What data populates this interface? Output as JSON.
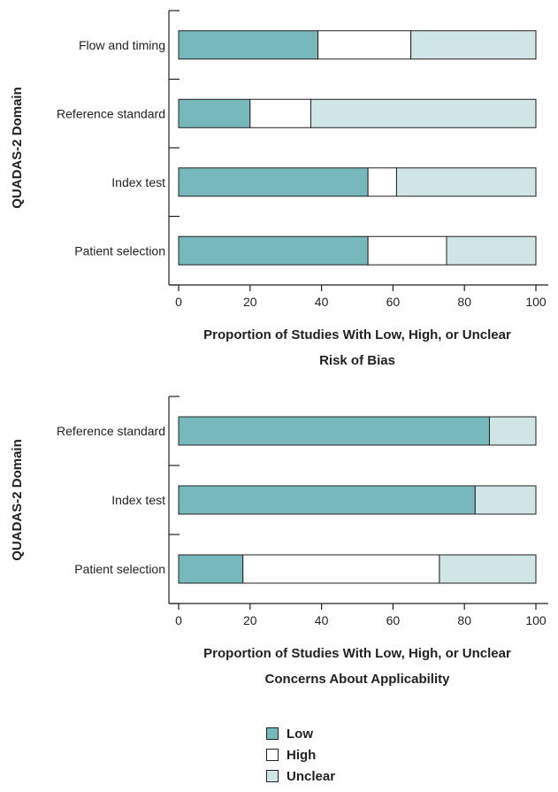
{
  "chart_data": [
    {
      "type": "bar",
      "stacked": true,
      "orientation": "horizontal",
      "title": "",
      "xlabel": "Proportion of Studies With Low, High, or Unclear Risk of Bias",
      "xlabel_lines": [
        "Proportion of Studies With Low, High, or Unclear",
        "Risk of Bias"
      ],
      "ylabel": "QUADAS-2 Domain",
      "xlim": [
        0,
        100
      ],
      "xticks": [
        "0",
        "20",
        "40",
        "60",
        "80",
        "100"
      ],
      "grid": false,
      "categories": [
        "Flow and timing",
        "Reference standard",
        "Index test",
        "Patient selection"
      ],
      "series": [
        {
          "name": "Low",
          "values": [
            39,
            20,
            53,
            53
          ]
        },
        {
          "name": "High",
          "values": [
            26,
            17,
            8,
            22
          ]
        },
        {
          "name": "Unclear",
          "values": [
            35,
            63,
            39,
            25
          ]
        }
      ]
    },
    {
      "type": "bar",
      "stacked": true,
      "orientation": "horizontal",
      "title": "",
      "xlabel": "Proportion of Studies With Low, High, or Unclear Concerns About Applicability",
      "xlabel_lines": [
        "Proportion of Studies With Low, High, or Unclear",
        "Concerns About Applicability"
      ],
      "ylabel": "QUADAS-2 Domain",
      "xlim": [
        0,
        100
      ],
      "xticks": [
        "0",
        "20",
        "40",
        "60",
        "80",
        "100"
      ],
      "grid": false,
      "categories": [
        "Reference standard",
        "Index test",
        "Patient selection"
      ],
      "series": [
        {
          "name": "Low",
          "values": [
            87,
            83,
            18
          ]
        },
        {
          "name": "High",
          "values": [
            0,
            0,
            55
          ]
        },
        {
          "name": "Unclear",
          "values": [
            13,
            17,
            27
          ]
        }
      ]
    }
  ],
  "legend": {
    "placement": "bottom-center",
    "items": [
      {
        "label": "Low",
        "color": "#76b8bc"
      },
      {
        "label": "High",
        "color": "#ffffff"
      },
      {
        "label": "Unclear",
        "color": "#cfe5e6"
      }
    ]
  }
}
